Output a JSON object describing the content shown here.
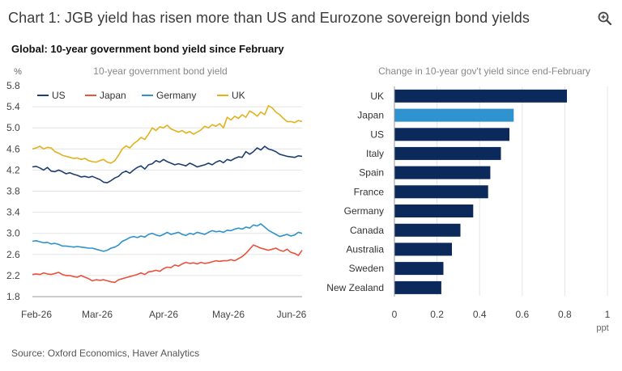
{
  "title": "Chart 1: JGB yield has risen more than US and Eurozone sovereign bond yields",
  "subtitle": "Global: 10-year government bond yield since February",
  "source": "Source: Oxford Economics, Haver Analytics",
  "icons": {
    "zoom": "zoom-in-icon"
  },
  "colors": {
    "US": "#1f3f6e",
    "Japan": "#e8523f",
    "Germany": "#2f93c8",
    "UK": "#e2b21d",
    "bar": "#0b2a5b",
    "bar_highlight": "#2f93cf"
  },
  "chart_data": [
    {
      "type": "line",
      "title": "10-year government bond yield",
      "ylabel": "%",
      "ylim": [
        1.8,
        5.8
      ],
      "yticks": [
        "5.8",
        "5.4",
        "5.0",
        "4.6",
        "4.2",
        "3.8",
        "3.4",
        "3.0",
        "2.6",
        "2.2",
        "1.8"
      ],
      "xticks": [
        "Feb-26",
        "Mar-26",
        "Apr-26",
        "May-26",
        "Jun-26"
      ],
      "legend_position": "top",
      "grid": true,
      "series": [
        {
          "name": "US",
          "color": "#1f3f6e",
          "values": [
            4.26,
            4.27,
            4.24,
            4.2,
            4.25,
            4.18,
            4.17,
            4.2,
            4.17,
            4.13,
            4.15,
            4.12,
            4.1,
            4.07,
            4.08,
            4.06,
            4.08,
            4.05,
            4.02,
            3.97,
            3.96,
            4.0,
            4.05,
            4.08,
            4.15,
            4.18,
            4.14,
            4.2,
            4.25,
            4.28,
            4.22,
            4.3,
            4.32,
            4.38,
            4.35,
            4.4,
            4.36,
            4.33,
            4.3,
            4.32,
            4.3,
            4.28,
            4.33,
            4.3,
            4.26,
            4.28,
            4.3,
            4.33,
            4.3,
            4.35,
            4.38,
            4.34,
            4.4,
            4.38,
            4.42,
            4.45,
            4.44,
            4.55,
            4.5,
            4.55,
            4.62,
            4.58,
            4.65,
            4.6,
            4.58,
            4.55,
            4.5,
            4.48,
            4.46,
            4.45,
            4.44,
            4.47,
            4.46
          ]
        },
        {
          "name": "Japan",
          "color": "#e8523f",
          "values": [
            2.22,
            2.23,
            2.22,
            2.25,
            2.23,
            2.22,
            2.24,
            2.26,
            2.22,
            2.2,
            2.2,
            2.18,
            2.17,
            2.2,
            2.17,
            2.14,
            2.1,
            2.12,
            2.11,
            2.12,
            2.1,
            2.08,
            2.07,
            2.12,
            2.14,
            2.16,
            2.18,
            2.2,
            2.22,
            2.25,
            2.22,
            2.27,
            2.28,
            2.3,
            2.28,
            2.33,
            2.36,
            2.35,
            2.4,
            2.38,
            2.42,
            2.45,
            2.43,
            2.44,
            2.42,
            2.45,
            2.43,
            2.44,
            2.46,
            2.48,
            2.47,
            2.48,
            2.48,
            2.5,
            2.48,
            2.52,
            2.56,
            2.62,
            2.7,
            2.78,
            2.75,
            2.72,
            2.7,
            2.68,
            2.7,
            2.72,
            2.68,
            2.66,
            2.7,
            2.64,
            2.62,
            2.58,
            2.68
          ]
        },
        {
          "name": "Germany",
          "color": "#2f93c8",
          "values": [
            2.85,
            2.86,
            2.84,
            2.82,
            2.83,
            2.8,
            2.81,
            2.79,
            2.76,
            2.76,
            2.75,
            2.74,
            2.75,
            2.74,
            2.73,
            2.72,
            2.72,
            2.7,
            2.68,
            2.66,
            2.68,
            2.72,
            2.74,
            2.78,
            2.85,
            2.88,
            2.92,
            2.94,
            2.92,
            2.95,
            2.93,
            2.98,
            3.0,
            2.97,
            2.95,
            2.98,
            3.02,
            2.98,
            3.0,
            3.02,
            2.98,
            2.96,
            3.0,
            2.98,
            3.02,
            3.0,
            2.98,
            3.02,
            3.05,
            3.03,
            3.04,
            3.02,
            3.06,
            3.05,
            3.08,
            3.1,
            3.08,
            3.12,
            3.1,
            3.16,
            3.14,
            3.18,
            3.12,
            3.06,
            3.02,
            2.98,
            2.94,
            2.96,
            2.98,
            2.95,
            2.97,
            3.02,
            3.0
          ]
        },
        {
          "name": "UK",
          "color": "#e2b21d",
          "values": [
            4.6,
            4.62,
            4.65,
            4.6,
            4.63,
            4.62,
            4.55,
            4.52,
            4.48,
            4.46,
            4.44,
            4.42,
            4.43,
            4.4,
            4.42,
            4.38,
            4.36,
            4.35,
            4.38,
            4.4,
            4.35,
            4.33,
            4.38,
            4.48,
            4.6,
            4.66,
            4.62,
            4.7,
            4.75,
            4.82,
            4.78,
            4.88,
            5.0,
            4.95,
            5.02,
            5.0,
            5.05,
            4.98,
            4.95,
            4.92,
            4.95,
            4.9,
            4.93,
            4.88,
            4.92,
            4.96,
            5.03,
            5.0,
            5.06,
            5.03,
            5.08,
            5.0,
            5.2,
            5.15,
            5.22,
            5.18,
            5.25,
            5.2,
            5.32,
            5.28,
            5.22,
            5.3,
            5.25,
            5.42,
            5.38,
            5.3,
            5.25,
            5.18,
            5.12,
            5.12,
            5.1,
            5.14,
            5.12
          ]
        }
      ]
    },
    {
      "type": "bar",
      "orientation": "horizontal",
      "title": "Change in 10-year gov't yield since end-February",
      "xlabel": "ppt",
      "xlim": [
        0,
        1
      ],
      "xticks": [
        "0",
        "0.2",
        "0.4",
        "0.6",
        "0.8",
        "1"
      ],
      "categories": [
        "UK",
        "Japan",
        "US",
        "Italy",
        "Spain",
        "France",
        "Germany",
        "Canada",
        "Australia",
        "Sweden",
        "New Zealand"
      ],
      "values": [
        0.81,
        0.56,
        0.54,
        0.5,
        0.45,
        0.44,
        0.37,
        0.31,
        0.27,
        0.23,
        0.22
      ],
      "highlight": "Japan"
    }
  ]
}
